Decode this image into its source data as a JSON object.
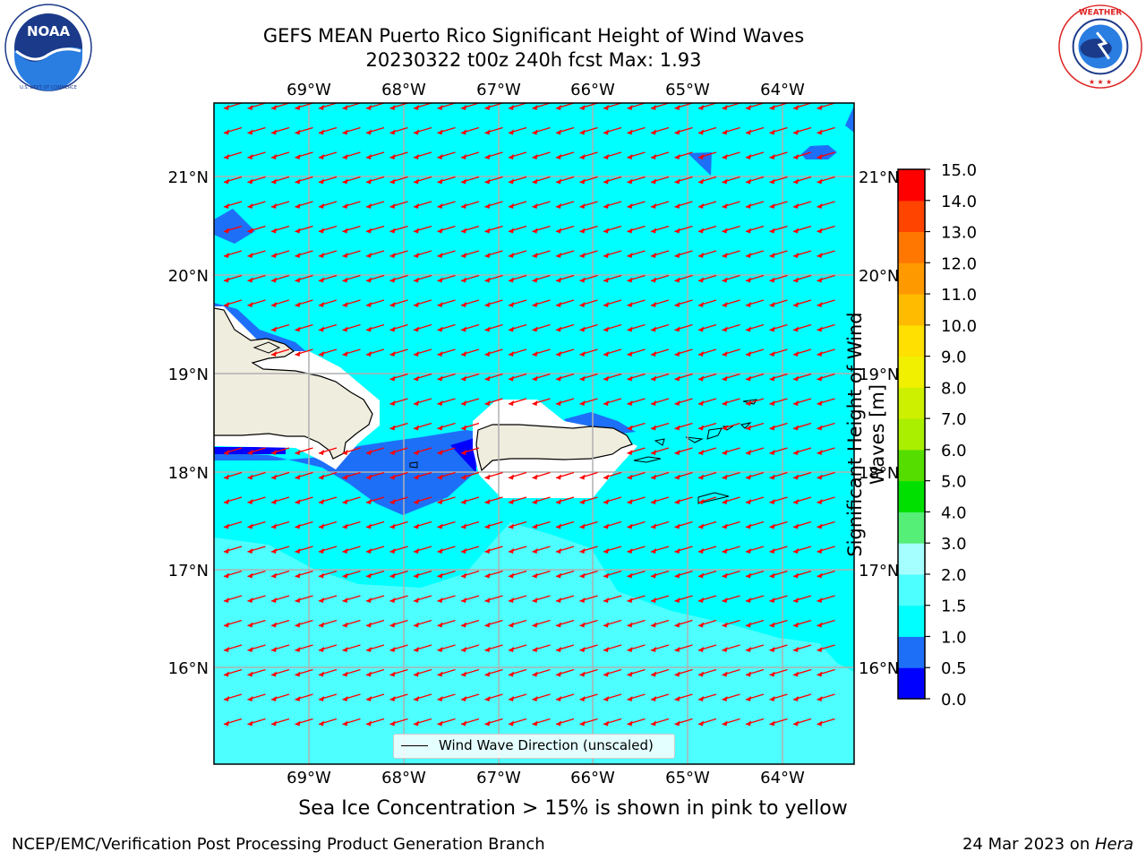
{
  "title": {
    "line1": "GEFS MEAN Puerto Rico Significant Height of Wind Waves",
    "line2": "20230322 t00z 240h fcst   Max: 1.93"
  },
  "logos": {
    "left": {
      "icon": "noaa-logo",
      "text": "NOAA",
      "ring_text": "NATIONAL OCEANIC AND ATMOSPHERIC ADMINISTRATION · U.S. DEPARTMENT OF COMMERCE"
    },
    "right": {
      "icon": "nws-logo",
      "ring_text": "NATIONAL WEATHER SERVICE"
    }
  },
  "map": {
    "lon_labels": [
      "69°W",
      "68°W",
      "67°W",
      "66°W",
      "65°W",
      "64°W"
    ],
    "lat_labels": [
      "21°N",
      "20°N",
      "19°N",
      "18°N",
      "17°N",
      "16°N"
    ],
    "gridlines": true,
    "arrow_color": "#ff0000",
    "arrow_direction": "toward southwest",
    "land_color": "#efedde",
    "legend": "Wind Wave Direction (unscaled)"
  },
  "colorbar": {
    "label": "Significant Height of Wind Waves [m]",
    "ticks": [
      "0.0",
      "0.5",
      "1.0",
      "1.5",
      "2.0",
      "3.0",
      "4.0",
      "5.0",
      "6.0",
      "7.0",
      "8.0",
      "9.0",
      "10.0",
      "11.0",
      "12.0",
      "13.0",
      "14.0",
      "15.0"
    ],
    "colors": [
      "#0000ff",
      "#1e6ff7",
      "#00ffff",
      "#4dffff",
      "#a6ffff",
      "#55ee77",
      "#00e000",
      "#55dd00",
      "#aaee00",
      "#ccf000",
      "#f0f000",
      "#ffe000",
      "#ffbb00",
      "#ff9900",
      "#ff7700",
      "#ff4400",
      "#ff0000"
    ]
  },
  "sea_ice_note": "Sea Ice Concentration > 15% is shown in pink to yellow",
  "footer": {
    "left": "NCEP/EMC/Verification Post Processing Product Generation Branch",
    "right_prefix": "24 Mar 2023 on ",
    "right_host": "Hera"
  }
}
